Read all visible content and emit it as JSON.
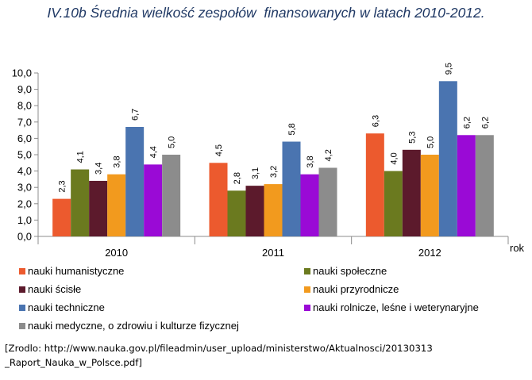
{
  "title": "IV.10b Średnia wielkość zespołów  finansowanych w latach 2010-2012.",
  "source_line1": "[Zrodlo: http://www.nauka.gov.pl/fileadmin/user_upload/ministerstwo/Aktualnosci/20130313",
  "source_line2": "_Raport_Nauka_w_Polsce.pdf]",
  "chart_data": {
    "type": "bar",
    "categories": [
      "2010",
      "2011",
      "2012"
    ],
    "xlabel": "rok",
    "ylabel": "",
    "ylim": [
      0,
      10
    ],
    "ytick_labels": [
      "0,0",
      "1,0",
      "2,0",
      "3,0",
      "4,0",
      "5,0",
      "6,0",
      "7,0",
      "8,0",
      "9,0",
      "10,0"
    ],
    "grid": false,
    "legend_position": "bottom",
    "series": [
      {
        "name": "nauki humanistyczne",
        "color": "#ec5a2e",
        "values": [
          2.3,
          4.5,
          6.3
        ],
        "labels": [
          "2,3",
          "4,5",
          "6,3"
        ]
      },
      {
        "name": "nauki społeczne",
        "color": "#6b7a1f",
        "values": [
          4.1,
          2.8,
          4.0
        ],
        "labels": [
          "4,1",
          "2,8",
          "4,0"
        ]
      },
      {
        "name": "nauki ścisłe",
        "color": "#5c1a2c",
        "values": [
          3.4,
          3.1,
          5.3
        ],
        "labels": [
          "3,4",
          "3,1",
          "5,3"
        ]
      },
      {
        "name": "nauki przyrodnicze",
        "color": "#f29a1e",
        "values": [
          3.8,
          3.2,
          5.0
        ],
        "labels": [
          "3,8",
          "3,2",
          "5,0"
        ]
      },
      {
        "name": "nauki techniczne",
        "color": "#4a74b0",
        "values": [
          6.7,
          5.8,
          9.5
        ],
        "labels": [
          "6,7",
          "5,8",
          "9,5"
        ]
      },
      {
        "name": "nauki rolnicze, leśne i weterynaryjne",
        "color": "#9a0ad6",
        "values": [
          4.4,
          3.8,
          6.2
        ],
        "labels": [
          "4,4",
          "3,8",
          "6,2"
        ]
      },
      {
        "name": "nauki medyczne, o zdrowiu i kulturze fizycznej",
        "color": "#8c8c8c",
        "values": [
          5.0,
          4.2,
          6.2
        ],
        "labels": [
          "5,0",
          "4,2",
          "6,2"
        ]
      }
    ]
  }
}
